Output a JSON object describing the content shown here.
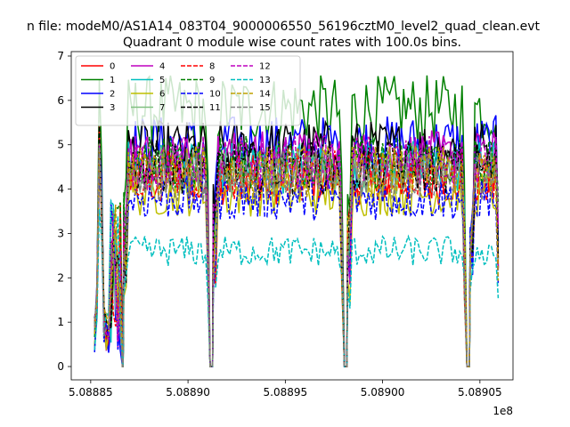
{
  "chart_data": {
    "type": "line",
    "suptitle": "n file: modeM0/AS1A14_083T04_9000006550_56196cztM0_level2_quad_clean.evt",
    "title": "Quadrant 0 module wise count rates with 100.0s bins.",
    "xlabel": "",
    "ylabel": "",
    "x_offset_label": "1e8",
    "xlim": [
      5.08884,
      5.089067
    ],
    "ylim": [
      -0.3,
      7.1
    ],
    "x_ticks": [
      5.08885,
      5.0889,
      5.08895,
      5.089,
      5.08905
    ],
    "x_tick_labels": [
      "5.08885",
      "5.08890",
      "5.08895",
      "5.08900",
      "5.08905"
    ],
    "y_ticks": [
      0,
      1,
      2,
      3,
      4,
      5,
      6,
      7
    ],
    "y_tick_labels": [
      "0",
      "1",
      "2",
      "3",
      "4",
      "5",
      "6",
      "7"
    ],
    "grid": false,
    "legend": {
      "placement": "top-left",
      "columns": 4
    },
    "segments": [
      {
        "x0": 5.088852,
        "x1": 5.088866,
        "shape": "flare"
      },
      {
        "x0": 5.088867,
        "x1": 5.088911,
        "shape": "plateau"
      },
      {
        "x0": 5.088913,
        "x1": 5.08898,
        "shape": "plateau"
      },
      {
        "x0": 5.088982,
        "x1": 5.089043,
        "shape": "plateau"
      },
      {
        "x0": 5.089045,
        "x1": 5.08906,
        "shape": "plateau"
      }
    ],
    "series": [
      {
        "name": "0",
        "color": "#ff0000",
        "dash": "solid",
        "level": 4.2
      },
      {
        "name": "1",
        "color": "#008000",
        "dash": "solid",
        "level": 5.8
      },
      {
        "name": "2",
        "color": "#0000ff",
        "dash": "solid",
        "level": 5.0
      },
      {
        "name": "3",
        "color": "#000000",
        "dash": "solid",
        "level": 4.9
      },
      {
        "name": "4",
        "color": "#bf00bf",
        "dash": "solid",
        "level": 4.7
      },
      {
        "name": "5",
        "color": "#00bfbf",
        "dash": "solid",
        "level": 4.5
      },
      {
        "name": "6",
        "color": "#bfbf00",
        "dash": "solid",
        "level": 3.9
      },
      {
        "name": "7",
        "color": "#80c080",
        "dash": "solid",
        "level": 4.4
      },
      {
        "name": "8",
        "color": "#ff0000",
        "dash": "dashed",
        "level": 4.3
      },
      {
        "name": "9",
        "color": "#008000",
        "dash": "dashed",
        "level": 4.6
      },
      {
        "name": "10",
        "color": "#0000ff",
        "dash": "dashed",
        "level": 3.8
      },
      {
        "name": "11",
        "color": "#000000",
        "dash": "dashed",
        "level": 4.5
      },
      {
        "name": "12",
        "color": "#bf00bf",
        "dash": "dashed",
        "level": 4.6
      },
      {
        "name": "13",
        "color": "#00bfbf",
        "dash": "dashed",
        "level": 2.6
      },
      {
        "name": "14",
        "color": "#bfa000",
        "dash": "dashed",
        "level": 4.4
      },
      {
        "name": "15",
        "color": "#808080",
        "dash": "dashed",
        "level": 4.3
      }
    ]
  }
}
